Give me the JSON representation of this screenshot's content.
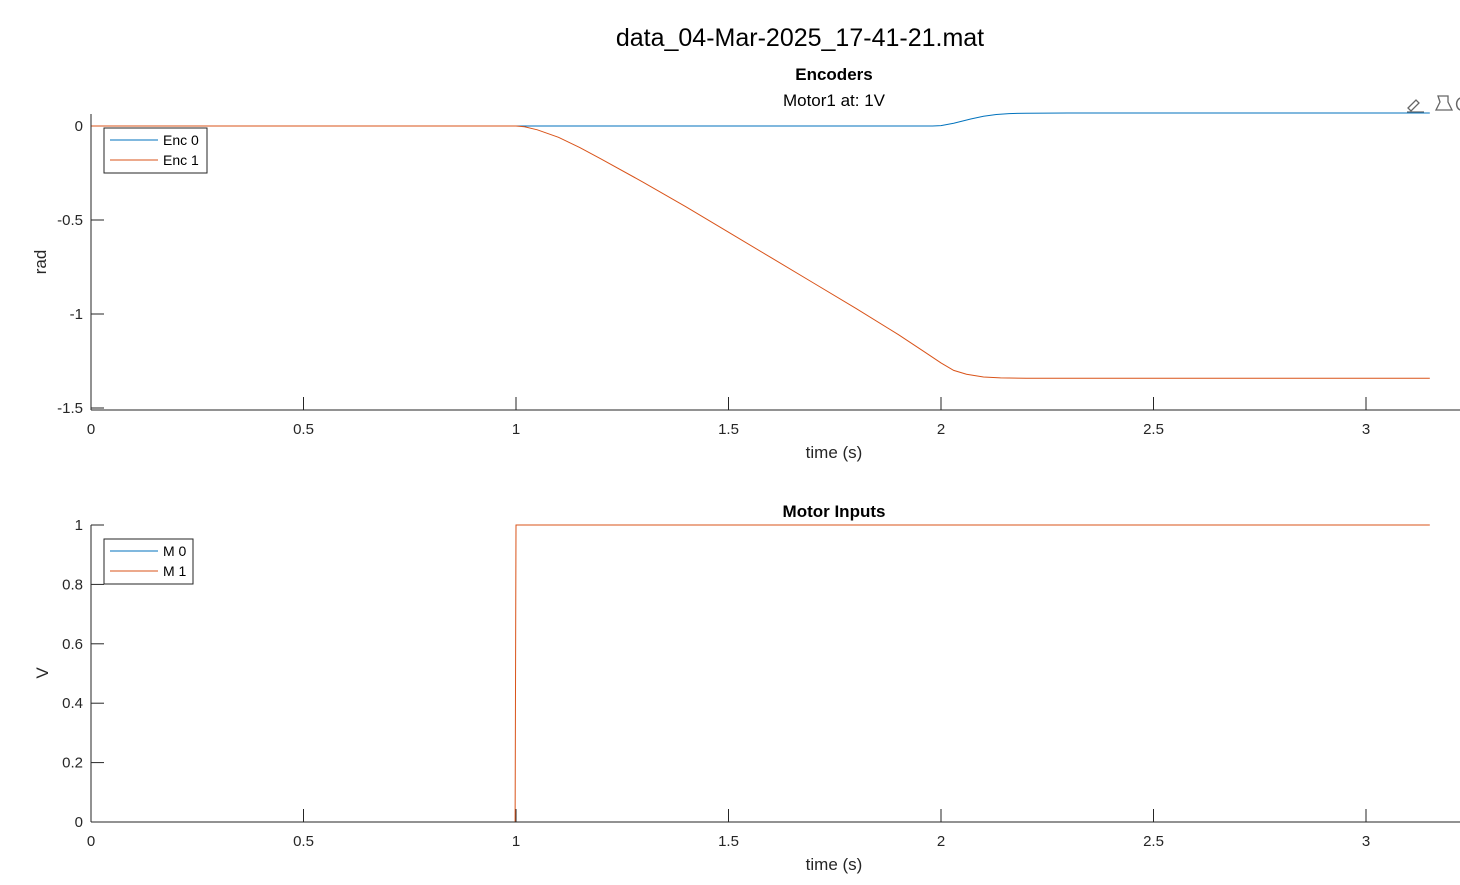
{
  "figure": {
    "title": "data_04-Mar-2025_17-41-21.mat"
  },
  "toolbar": {
    "icons": [
      "brush-icon",
      "data-tips-icon",
      "more-tools-icon"
    ]
  },
  "chart_data": [
    {
      "type": "line",
      "title": "Encoders",
      "subtitle": "Motor1 at: 1V",
      "xlabel": "time (s)",
      "ylabel": "rad",
      "xlim": [
        0,
        3.2
      ],
      "ylim": [
        -1.51,
        0.06
      ],
      "xticks": [
        0,
        0.5,
        1,
        1.5,
        2,
        2.5,
        3
      ],
      "xtick_labels": [
        "0",
        "0.5",
        "1",
        "1.5",
        "2",
        "2.5",
        "3"
      ],
      "yticks": [
        0,
        -0.5,
        -1,
        -1.5
      ],
      "ytick_labels": [
        "0",
        "-0.5",
        "-1",
        "-1.5"
      ],
      "grid": false,
      "legend": {
        "placement": "top-left",
        "entries": [
          "Enc 0",
          "Enc 1"
        ]
      },
      "colors": [
        "#0072BD",
        "#D95319"
      ],
      "series": [
        {
          "name": "Enc 0",
          "x": [
            0,
            1.0,
            1.5,
            1.98,
            2.0,
            2.03,
            2.07,
            2.1,
            2.13,
            2.16,
            2.2,
            2.3,
            2.5,
            3.0,
            3.15
          ],
          "y": [
            0,
            0,
            0,
            0,
            0.002,
            0.015,
            0.037,
            0.052,
            0.061,
            0.066,
            0.068,
            0.069,
            0.069,
            0.069,
            0.069
          ]
        },
        {
          "name": "Enc 1",
          "x": [
            0,
            1.0,
            1.02,
            1.05,
            1.1,
            1.15,
            1.2,
            1.3,
            1.4,
            1.5,
            1.6,
            1.7,
            1.8,
            1.9,
            1.96,
            2.0,
            2.03,
            2.06,
            2.1,
            2.14,
            2.2,
            2.5,
            3.0,
            3.15
          ],
          "y": [
            0,
            0,
            -0.004,
            -0.02,
            -0.06,
            -0.115,
            -0.175,
            -0.3,
            -0.43,
            -0.565,
            -0.7,
            -0.835,
            -0.97,
            -1.11,
            -1.2,
            -1.26,
            -1.3,
            -1.32,
            -1.335,
            -1.34,
            -1.342,
            -1.342,
            -1.342,
            -1.342
          ]
        }
      ]
    },
    {
      "type": "line",
      "title": "Motor Inputs",
      "xlabel": "time (s)",
      "ylabel": "V",
      "xlim": [
        0,
        3.2
      ],
      "ylim": [
        0,
        1
      ],
      "xticks": [
        0,
        0.5,
        1,
        1.5,
        2,
        2.5,
        3
      ],
      "xtick_labels": [
        "0",
        "0.5",
        "1",
        "1.5",
        "2",
        "2.5",
        "3"
      ],
      "yticks": [
        0,
        0.2,
        0.4,
        0.6,
        0.8,
        1
      ],
      "ytick_labels": [
        "0",
        "0.2",
        "0.4",
        "0.6",
        "0.8",
        "1"
      ],
      "grid": false,
      "legend": {
        "placement": "top-left",
        "entries": [
          "M 0",
          "M 1"
        ]
      },
      "colors": [
        "#0072BD",
        "#D95319"
      ],
      "series": [
        {
          "name": "M 0",
          "x": [
            0,
            3.15
          ],
          "y": [
            0,
            0
          ]
        },
        {
          "name": "M 1",
          "x": [
            0,
            0.998,
            1.0,
            3.15
          ],
          "y": [
            0,
            0,
            1,
            1
          ]
        }
      ]
    }
  ]
}
